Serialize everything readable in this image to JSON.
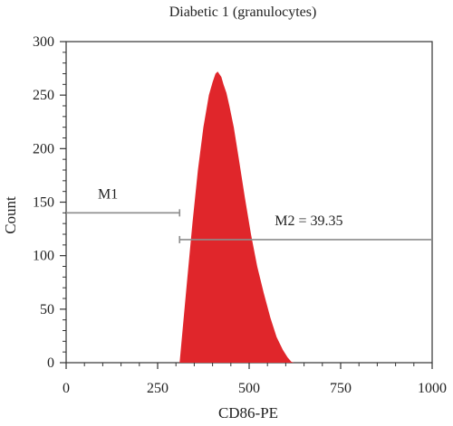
{
  "chart_data": {
    "type": "area",
    "title": "Diabetic 1 (granulocytes)",
    "xlabel": "CD86-PE",
    "ylabel": "Count",
    "xlim": [
      0,
      1000
    ],
    "ylim": [
      0,
      300
    ],
    "xticks": [
      0,
      250,
      500,
      750,
      1000
    ],
    "yticks": [
      0,
      50,
      100,
      150,
      200,
      250,
      300
    ],
    "grid": false,
    "series": [
      {
        "fill_color": "#e0262b",
        "x": [
          310,
          318,
          330,
          345,
          360,
          375,
          390,
          400,
          408,
          414,
          418,
          424,
          430,
          438,
          446,
          458,
          472,
          488,
          505,
          522,
          540,
          558,
          575,
          592,
          605,
          615,
          622
        ],
        "y": [
          0,
          30,
          75,
          130,
          180,
          220,
          250,
          262,
          270,
          272,
          270,
          267,
          260,
          252,
          240,
          220,
          190,
          155,
          120,
          90,
          65,
          42,
          24,
          12,
          5,
          1,
          0
        ]
      }
    ],
    "markers": [
      {
        "label": "M1",
        "x_start": 0,
        "x_end": 310,
        "y": 140
      },
      {
        "label": "M2 = 39.35",
        "x_start": 310,
        "x_end": 1000,
        "y": 115
      }
    ]
  },
  "colors": {
    "axis": "#333333",
    "fill": "#e0262b",
    "marker": "#8c8c8c"
  }
}
